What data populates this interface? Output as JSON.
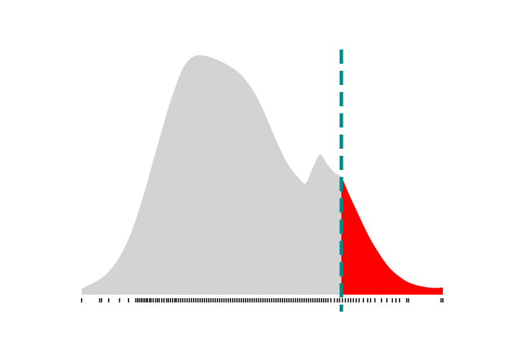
{
  "chart_data": {
    "type": "area",
    "title": "",
    "xlabel": "",
    "ylabel": "",
    "grid": false,
    "axes_visible": false,
    "xlim": [
      0,
      1
    ],
    "ylim": [
      0,
      1
    ],
    "threshold_x": 0.719,
    "colors": {
      "density_fill": "#d3d3d3",
      "tail_fill": "#ff0000",
      "threshold_line": "#008b8b",
      "rug": "#000000",
      "background": "#ffffff"
    },
    "density": {
      "x": [
        0.0,
        0.02,
        0.04,
        0.06,
        0.08,
        0.1,
        0.12,
        0.14,
        0.16,
        0.18,
        0.2,
        0.22,
        0.24,
        0.26,
        0.28,
        0.3,
        0.32,
        0.34,
        0.36,
        0.38,
        0.4,
        0.42,
        0.44,
        0.46,
        0.48,
        0.5,
        0.52,
        0.54,
        0.56,
        0.58,
        0.6,
        0.62,
        0.64,
        0.66,
        0.68,
        0.7,
        0.719,
        0.74,
        0.76,
        0.78,
        0.8,
        0.82,
        0.84,
        0.86,
        0.88,
        0.9,
        0.92,
        0.94,
        0.96,
        0.98,
        1.0
      ],
      "y": [
        0.025,
        0.04,
        0.055,
        0.075,
        0.105,
        0.145,
        0.2,
        0.27,
        0.36,
        0.46,
        0.57,
        0.675,
        0.78,
        0.87,
        0.945,
        0.985,
        1.0,
        0.998,
        0.99,
        0.978,
        0.963,
        0.945,
        0.92,
        0.885,
        0.84,
        0.78,
        0.71,
        0.64,
        0.575,
        0.525,
        0.49,
        0.465,
        0.53,
        0.585,
        0.545,
        0.51,
        0.495,
        0.42,
        0.355,
        0.29,
        0.23,
        0.18,
        0.135,
        0.1,
        0.075,
        0.055,
        0.043,
        0.035,
        0.03,
        0.028,
        0.03
      ]
    },
    "rug": [
      0.0,
      0.05,
      0.055,
      0.075,
      0.105,
      0.13,
      0.15,
      0.155,
      0.16,
      0.165,
      0.17,
      0.175,
      0.18,
      0.182,
      0.188,
      0.192,
      0.198,
      0.205,
      0.21,
      0.215,
      0.222,
      0.228,
      0.235,
      0.24,
      0.246,
      0.252,
      0.258,
      0.262,
      0.268,
      0.274,
      0.28,
      0.286,
      0.292,
      0.298,
      0.304,
      0.31,
      0.316,
      0.322,
      0.328,
      0.334,
      0.34,
      0.346,
      0.352,
      0.358,
      0.364,
      0.37,
      0.376,
      0.382,
      0.388,
      0.394,
      0.4,
      0.406,
      0.412,
      0.418,
      0.424,
      0.43,
      0.436,
      0.442,
      0.448,
      0.454,
      0.46,
      0.466,
      0.472,
      0.478,
      0.484,
      0.49,
      0.496,
      0.502,
      0.508,
      0.514,
      0.52,
      0.526,
      0.532,
      0.538,
      0.544,
      0.55,
      0.556,
      0.562,
      0.568,
      0.574,
      0.58,
      0.586,
      0.592,
      0.598,
      0.604,
      0.61,
      0.616,
      0.622,
      0.628,
      0.634,
      0.64,
      0.646,
      0.652,
      0.658,
      0.664,
      0.67,
      0.676,
      0.682,
      0.69,
      0.7,
      0.708,
      0.714,
      0.722,
      0.73,
      0.738,
      0.745,
      0.752,
      0.76,
      0.768,
      0.78,
      0.792,
      0.8,
      0.812,
      0.83,
      0.845,
      0.86,
      0.87,
      0.88,
      0.9,
      0.905,
      0.995,
      1.0
    ]
  }
}
